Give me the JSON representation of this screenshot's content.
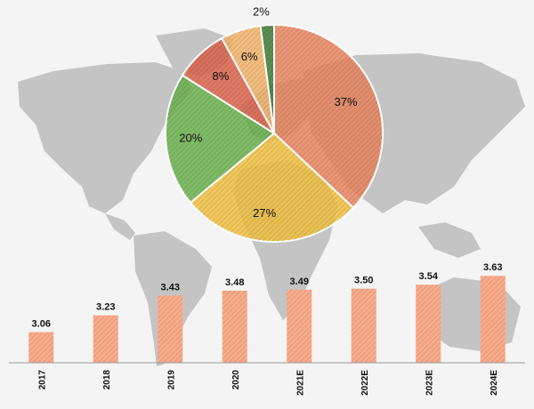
{
  "chart_data": [
    {
      "type": "pie",
      "title": "",
      "slices": [
        {
          "label": "37%",
          "value": 37,
          "color": "#e8855f"
        },
        {
          "label": "27%",
          "value": 27,
          "color": "#f0c040"
        },
        {
          "label": "20%",
          "value": 20,
          "color": "#6ab04c"
        },
        {
          "label": "8%",
          "value": 8,
          "color": "#d9634a"
        },
        {
          "label": "6%",
          "value": 6,
          "color": "#f2b36a"
        },
        {
          "label": "2%",
          "value": 2,
          "color": "#3f7a34"
        }
      ]
    },
    {
      "type": "bar",
      "title": "",
      "xlabel": "",
      "ylabel": "",
      "categories": [
        "2017",
        "2018",
        "2019",
        "2020",
        "2021E",
        "2022E",
        "2023E",
        "2024E"
      ],
      "values": [
        3.06,
        3.23,
        3.43,
        3.48,
        3.49,
        3.5,
        3.54,
        3.63
      ],
      "value_labels": [
        "3.06",
        "3.23",
        "3.43",
        "3.48",
        "3.49",
        "3.50",
        "3.54",
        "3.63"
      ],
      "color": "#f2a07e",
      "grid": false
    }
  ],
  "colors": {
    "background": "#f4f4f4",
    "map": "#c4c4c4",
    "axis": "#9a9a9a"
  }
}
